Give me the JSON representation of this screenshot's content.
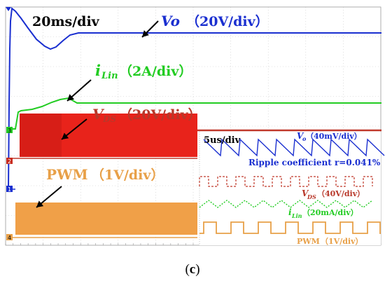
{
  "caption": {
    "open": "(",
    "letter": "c",
    "close": ")"
  },
  "main": {
    "timebase": "20ms/div",
    "vo": {
      "name": "Vo",
      "scale": "（20V/div）",
      "color": "#1a2fd0"
    },
    "ilin": {
      "name": "i",
      "sub": "Lin",
      "scale": "（2A/div）",
      "color": "#22cc22"
    },
    "vds": {
      "name": "V",
      "sub": "DS",
      "scale": "（20V/div）",
      "color": "#b8382a"
    },
    "pwm": {
      "name": "PWM",
      "scale": "（1V/div）",
      "color": "#e8a048"
    },
    "channel_markers": [
      "1",
      "2",
      "3",
      "4"
    ]
  },
  "inset": {
    "timebase": "5us/div",
    "vo": {
      "name": "V",
      "sub": "o",
      "scale": "（40mV/div）"
    },
    "ripple": "Ripple coefficient r=0.041%",
    "vds": {
      "name": "V",
      "sub": "DS",
      "scale": "（40V/div）"
    },
    "ilin": {
      "name": "i",
      "sub": "Lin",
      "scale": "（20mA/div）"
    },
    "pwm": {
      "name": "PWM",
      "scale": "（1V/div）"
    }
  },
  "chart_data": [
    {
      "type": "line",
      "title": "",
      "x_unit": "20ms/div",
      "series": [
        {
          "name": "Vo",
          "scale": "20V/div",
          "shape": "overshoot spike at start, dip, then settles flat"
        },
        {
          "name": "iLin",
          "scale": "2A/div",
          "shape": "step then ramp to steady level"
        },
        {
          "name": "VDS",
          "scale": "20V/div",
          "shape": "switching band, then steady line"
        },
        {
          "name": "PWM",
          "scale": "1V/div",
          "shape": "switching band"
        }
      ]
    },
    {
      "type": "line",
      "title": "",
      "x_unit": "5us/div",
      "annotation": "Ripple coefficient r=0.041%",
      "series": [
        {
          "name": "Vo",
          "scale": "40mV/div",
          "shape": "sawtooth ripple"
        },
        {
          "name": "VDS",
          "scale": "40V/div",
          "shape": "square wave"
        },
        {
          "name": "iLin",
          "scale": "20mA/div",
          "shape": "triangle ripple"
        },
        {
          "name": "PWM",
          "scale": "1V/div",
          "shape": "square pulses"
        }
      ]
    }
  ]
}
